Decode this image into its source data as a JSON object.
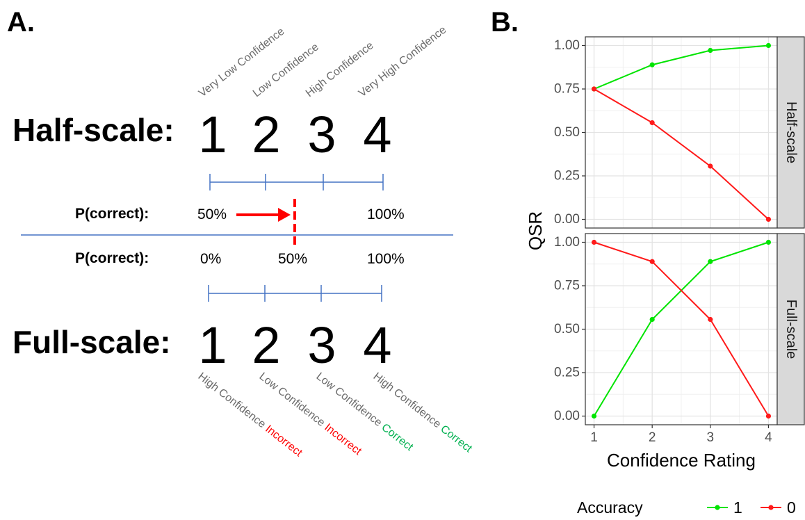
{
  "panel_a": {
    "letter": "A.",
    "half_scale": {
      "title": "Half-scale:",
      "digits": [
        "1",
        "2",
        "3",
        "4"
      ],
      "labels": [
        "Very Low Confidence",
        "Low Confidence",
        "High Confidence",
        "Very High Confidence"
      ],
      "p_correct_label": "P(correct):",
      "p_left": "50%",
      "p_right": "100%"
    },
    "full_scale": {
      "title": "Full-scale:",
      "digits": [
        "1",
        "2",
        "3",
        "4"
      ],
      "labels": [
        {
          "prefix": "High Confidence ",
          "word": "Incorrect"
        },
        {
          "prefix": "Low Confidence ",
          "word": "Incorrect"
        },
        {
          "prefix": "Low Confidence ",
          "word": "Correct"
        },
        {
          "prefix": "High Confidence ",
          "word": "Correct"
        }
      ],
      "p_correct_label": "P(correct):",
      "p_left": "0%",
      "p_mid": "50%",
      "p_right": "100%"
    },
    "colors": {
      "scale_line": "#4472c4",
      "arrow": "#ff0000",
      "incorrect": "#ff0000",
      "correct": "#00b050",
      "label_gray": "#6b6b6b"
    }
  },
  "chart_data": {
    "type": "line",
    "panel_letter": "B.",
    "xlabel": "Confidence Rating",
    "ylabel": "QSR",
    "x": [
      1,
      2,
      3,
      4
    ],
    "xlim": [
      0.85,
      4.15
    ],
    "ylim": [
      -0.05,
      1.05
    ],
    "y_ticks": [
      0.0,
      0.25,
      0.5,
      0.75,
      1.0
    ],
    "y_tick_labels": [
      "0.00",
      "0.25",
      "0.50",
      "0.75",
      "1.00"
    ],
    "x_tick_labels": [
      "1",
      "2",
      "3",
      "4"
    ],
    "grid": true,
    "legend": {
      "title": "Accuracy",
      "position": "bottom",
      "entries": [
        {
          "label": "1",
          "color": "#00e400"
        },
        {
          "label": "0",
          "color": "#ff1a1a"
        }
      ]
    },
    "facets": [
      {
        "strip": "Half-scale",
        "series": [
          {
            "name": "1",
            "color": "#00e400",
            "values": [
              0.75,
              0.889,
              0.972,
              1.0
            ]
          },
          {
            "name": "0",
            "color": "#ff1a1a",
            "values": [
              0.75,
              0.556,
              0.306,
              0.0
            ]
          }
        ]
      },
      {
        "strip": "Full-scale",
        "series": [
          {
            "name": "1",
            "color": "#00e400",
            "values": [
              0.0,
              0.556,
              0.889,
              1.0
            ]
          },
          {
            "name": "0",
            "color": "#ff1a1a",
            "values": [
              1.0,
              0.889,
              0.556,
              0.0
            ]
          }
        ]
      }
    ]
  }
}
